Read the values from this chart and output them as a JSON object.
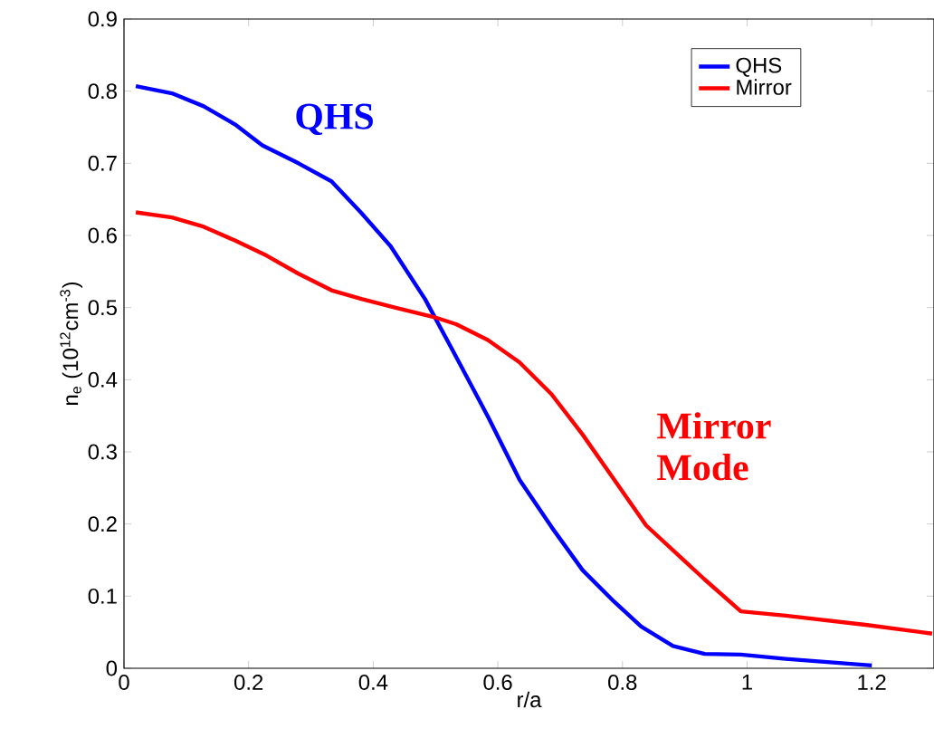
{
  "chart_data": {
    "type": "line",
    "xlabel": "r/a",
    "ylabel": "n$_{e}$ (10$^{12}$cm$^{-3}$)",
    "xlim": [
      0,
      1.3
    ],
    "ylim": [
      0,
      0.9
    ],
    "xticks": [
      0,
      0.2,
      0.4,
      0.6,
      0.8,
      1,
      1.2
    ],
    "yticks": [
      0,
      0.1,
      0.2,
      0.3,
      0.4,
      0.5,
      0.6,
      0.7,
      0.8,
      0.9
    ],
    "legend": "top right",
    "grid": false,
    "marker": "none",
    "line_style": "solid",
    "series": [
      {
        "name": "QHS",
        "color": "#0000ff",
        "x": [
          0.019,
          0.077,
          0.128,
          0.178,
          0.222,
          0.28,
          0.333,
          0.381,
          0.428,
          0.483,
          0.526,
          0.584,
          0.635,
          0.686,
          0.736,
          0.787,
          0.83,
          0.881,
          0.932,
          0.99,
          1.062,
          1.2
        ],
        "values": [
          0.807,
          0.797,
          0.779,
          0.754,
          0.725,
          0.7,
          0.675,
          0.631,
          0.585,
          0.512,
          0.443,
          0.349,
          0.261,
          0.196,
          0.136,
          0.092,
          0.058,
          0.031,
          0.02,
          0.019,
          0.013,
          0.004
        ]
      },
      {
        "name": "Mirror",
        "color": "#ff0000",
        "x": [
          0.019,
          0.077,
          0.128,
          0.178,
          0.229,
          0.28,
          0.333,
          0.381,
          0.439,
          0.497,
          0.533,
          0.584,
          0.635,
          0.686,
          0.736,
          0.787,
          0.838,
          0.932,
          0.99,
          1.062,
          1.193,
          1.297
        ],
        "values": [
          0.632,
          0.625,
          0.612,
          0.593,
          0.572,
          0.547,
          0.524,
          0.512,
          0.499,
          0.487,
          0.477,
          0.455,
          0.424,
          0.38,
          0.324,
          0.261,
          0.198,
          0.123,
          0.079,
          0.073,
          0.06,
          0.048
        ]
      }
    ],
    "annotations": [
      "QHS",
      "Mirror Mode"
    ]
  }
}
